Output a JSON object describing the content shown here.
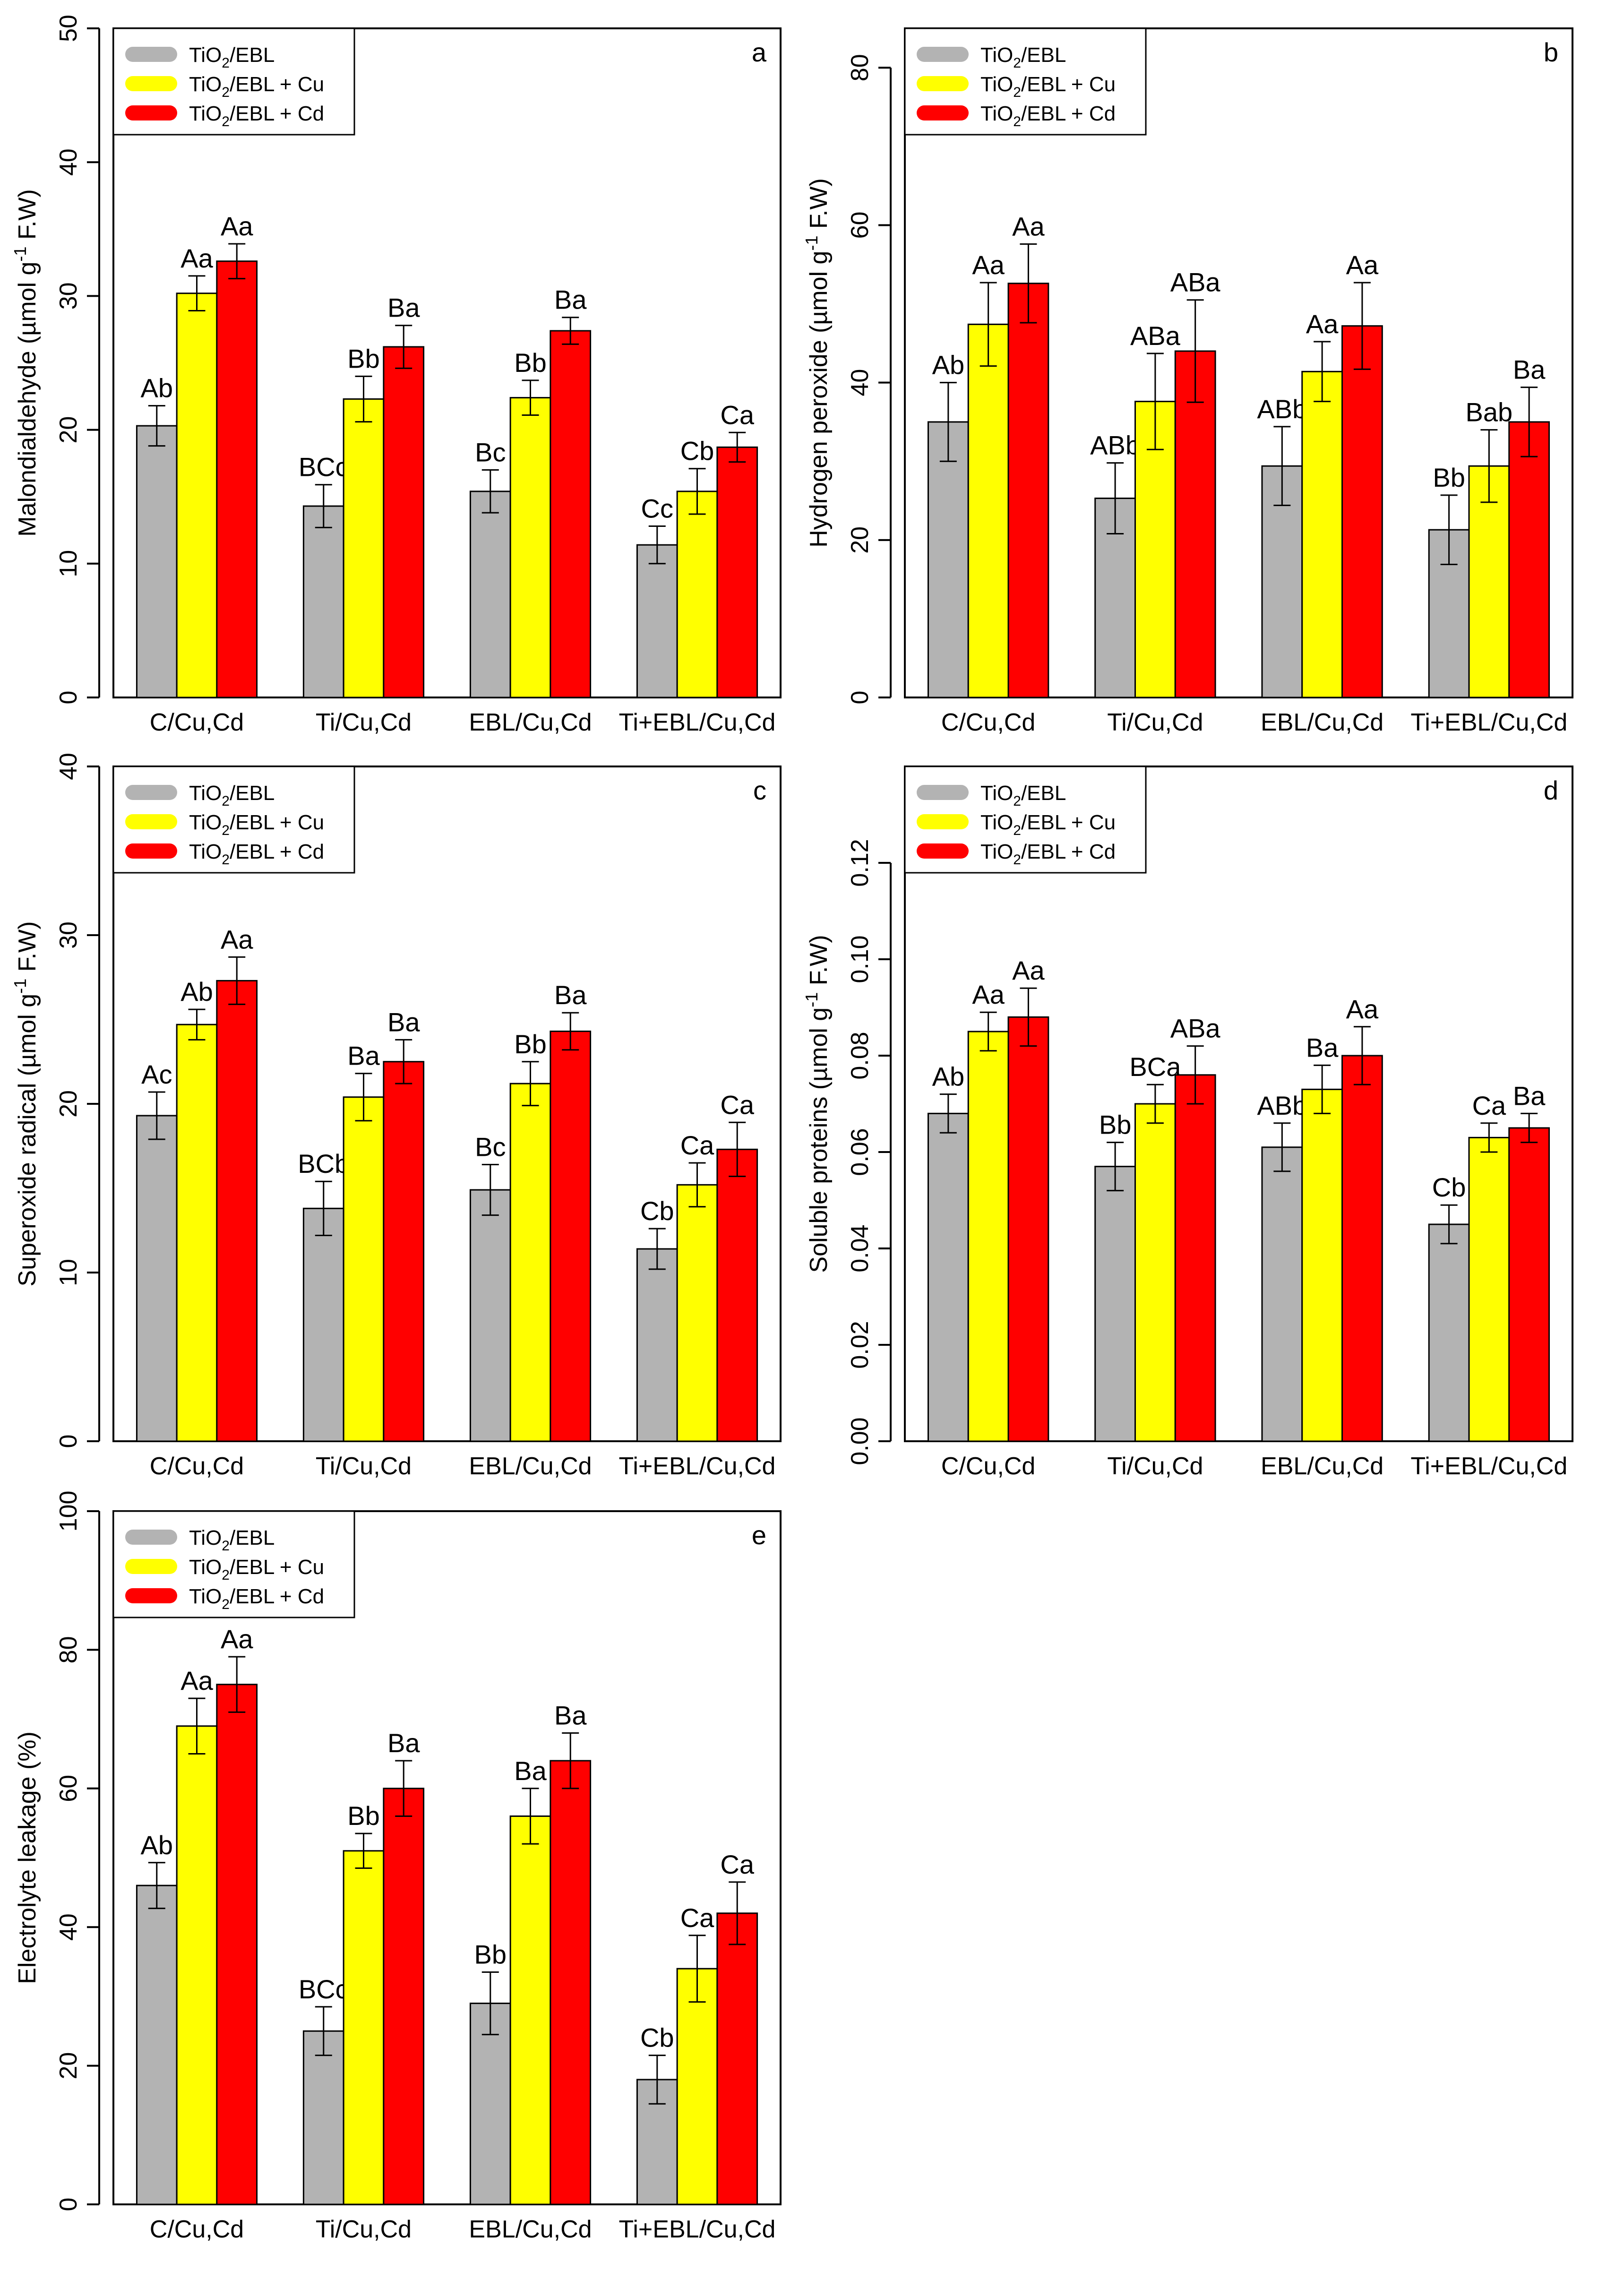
{
  "legend_labels": [
    {
      "base": "TiO",
      "sub": "2",
      "rest": "/EBL"
    },
    {
      "base": "TiO",
      "sub": "2",
      "rest": "/EBL + Cu"
    },
    {
      "base": "TiO",
      "sub": "2",
      "rest": "/EBL + Cd"
    }
  ],
  "colors": {
    "series": [
      "#b3b3b3",
      "#ffff00",
      "#ff0000"
    ],
    "axis": "#000000"
  },
  "chart_data": [
    {
      "panel": "a",
      "type": "bar",
      "ylabel": {
        "pre": "Malondialdehyde (µmol g",
        "sup": "-1",
        "post": " F.W)"
      },
      "categories": [
        "C/Cu,Cd",
        "Ti/Cu,Cd",
        "EBL/Cu,Cd",
        "Ti+EBL/Cu,Cd"
      ],
      "ylim": [
        0,
        50
      ],
      "ticks": [
        0,
        10,
        20,
        30,
        40,
        50
      ],
      "tick_labels": [
        "0",
        "10",
        "20",
        "30",
        "40",
        "50"
      ],
      "series": [
        {
          "name": "TiO2/EBL",
          "values": [
            20.3,
            14.3,
            15.4,
            11.4
          ],
          "errors": [
            1.5,
            1.6,
            1.6,
            1.4
          ],
          "letters": [
            "Ab",
            "BCc",
            "Bc",
            "Cc"
          ]
        },
        {
          "name": "TiO2/EBL + Cu",
          "values": [
            30.2,
            22.3,
            22.4,
            15.4
          ],
          "errors": [
            1.3,
            1.7,
            1.3,
            1.7
          ],
          "letters": [
            "Aa",
            "Bb",
            "Bb",
            "Cb"
          ]
        },
        {
          "name": "TiO2/EBL + Cd",
          "values": [
            32.6,
            26.2,
            27.4,
            18.7
          ],
          "errors": [
            1.3,
            1.6,
            1.0,
            1.1
          ],
          "letters": [
            "Aa",
            "Ba",
            "Ba",
            "Ca"
          ]
        }
      ]
    },
    {
      "panel": "b",
      "type": "bar",
      "ylabel": {
        "pre": "Hydrogen peroxide (µmol g",
        "sup": "-1",
        "post": " F.W)"
      },
      "categories": [
        "C/Cu,Cd",
        "Ti/Cu,Cd",
        "EBL/Cu,Cd",
        "Ti+EBL/Cu,Cd"
      ],
      "ylim": [
        0,
        85
      ],
      "ticks": [
        0,
        20,
        40,
        60,
        80
      ],
      "tick_labels": [
        "0",
        "20",
        "40",
        "60",
        "80"
      ],
      "series": [
        {
          "name": "TiO2/EBL",
          "values": [
            35.0,
            25.3,
            29.4,
            21.3
          ],
          "errors": [
            5.0,
            4.5,
            5.0,
            4.4
          ],
          "letters": [
            "Ab",
            "ABb",
            "ABb",
            "Bb"
          ]
        },
        {
          "name": "TiO2/EBL + Cu",
          "values": [
            47.4,
            37.6,
            41.4,
            29.4
          ],
          "errors": [
            5.3,
            6.1,
            3.8,
            4.6
          ],
          "letters": [
            "Aa",
            "ABa",
            "Aa",
            "Bab"
          ]
        },
        {
          "name": "TiO2/EBL + Cd",
          "values": [
            52.6,
            44.0,
            47.2,
            35.0
          ],
          "errors": [
            5.0,
            6.5,
            5.5,
            4.4
          ],
          "letters": [
            "Aa",
            "ABa",
            "Aa",
            "Ba"
          ]
        }
      ]
    },
    {
      "panel": "c",
      "type": "bar",
      "ylabel": {
        "pre": "Superoxide radical (µmol g",
        "sup": "-1",
        "post": " F.W)"
      },
      "categories": [
        "C/Cu,Cd",
        "Ti/Cu,Cd",
        "EBL/Cu,Cd",
        "Ti+EBL/Cu,Cd"
      ],
      "ylim": [
        0,
        40
      ],
      "ticks": [
        0,
        10,
        20,
        30,
        40
      ],
      "tick_labels": [
        "0",
        "10",
        "20",
        "30",
        "40"
      ],
      "series": [
        {
          "name": "TiO2/EBL",
          "values": [
            19.3,
            13.8,
            14.9,
            11.4
          ],
          "errors": [
            1.4,
            1.6,
            1.5,
            1.2
          ],
          "letters": [
            "Ac",
            "BCb",
            "Bc",
            "Cb"
          ]
        },
        {
          "name": "TiO2/EBL + Cu",
          "values": [
            24.7,
            20.4,
            21.2,
            15.2
          ],
          "errors": [
            0.9,
            1.4,
            1.3,
            1.3
          ],
          "letters": [
            "Ab",
            "Ba",
            "Bb",
            "Ca"
          ]
        },
        {
          "name": "TiO2/EBL + Cd",
          "values": [
            27.3,
            22.5,
            24.3,
            17.3
          ],
          "errors": [
            1.4,
            1.3,
            1.1,
            1.6
          ],
          "letters": [
            "Aa",
            "Ba",
            "Ba",
            "Ca"
          ]
        }
      ]
    },
    {
      "panel": "d",
      "type": "bar",
      "ylabel": {
        "pre": "Soluble proteins (µmol g",
        "sup": "-1",
        "post": " F.W)"
      },
      "categories": [
        "C/Cu,Cd",
        "Ti/Cu,Cd",
        "EBL/Cu,Cd",
        "Ti+EBL/Cu,Cd"
      ],
      "ylim": [
        0,
        0.14
      ],
      "ticks": [
        0,
        0.02,
        0.04,
        0.06,
        0.08,
        0.1,
        0.12
      ],
      "tick_labels": [
        "0.00",
        "0.02",
        "0.04",
        "0.06",
        "0.08",
        "0.10",
        "0.12"
      ],
      "series": [
        {
          "name": "TiO2/EBL",
          "values": [
            0.068,
            0.057,
            0.061,
            0.045
          ],
          "errors": [
            0.004,
            0.005,
            0.005,
            0.004
          ],
          "letters": [
            "Ab",
            "Bb",
            "ABb",
            "Cb"
          ]
        },
        {
          "name": "TiO2/EBL + Cu",
          "values": [
            0.085,
            0.07,
            0.073,
            0.063
          ],
          "errors": [
            0.004,
            0.004,
            0.005,
            0.003
          ],
          "letters": [
            "Aa",
            "BCa",
            "Ba",
            "Ca"
          ]
        },
        {
          "name": "TiO2/EBL + Cd",
          "values": [
            0.088,
            0.076,
            0.08,
            0.065
          ],
          "errors": [
            0.006,
            0.006,
            0.006,
            0.003
          ],
          "letters": [
            "Aa",
            "ABa",
            "Aa",
            "Ba"
          ]
        }
      ]
    },
    {
      "panel": "e",
      "type": "bar",
      "ylabel": {
        "pre": "Electrolyte leakage (%)",
        "sup": "",
        "post": ""
      },
      "categories": [
        "C/Cu,Cd",
        "Ti/Cu,Cd",
        "EBL/Cu,Cd",
        "Ti+EBL/Cu,Cd"
      ],
      "ylim": [
        0,
        100
      ],
      "ticks": [
        0,
        20,
        40,
        60,
        80,
        100
      ],
      "tick_labels": [
        "0",
        "20",
        "40",
        "60",
        "80",
        "100"
      ],
      "series": [
        {
          "name": "TiO2/EBL",
          "values": [
            46,
            25,
            29,
            18
          ],
          "errors": [
            3.3,
            3.5,
            4.5,
            3.5
          ],
          "letters": [
            "Ab",
            "BCc",
            "Bb",
            "Cb"
          ]
        },
        {
          "name": "TiO2/EBL + Cu",
          "values": [
            69,
            51,
            56,
            34
          ],
          "errors": [
            4.0,
            2.5,
            4.0,
            4.8
          ],
          "letters": [
            "Aa",
            "Bb",
            "Ba",
            "Ca"
          ]
        },
        {
          "name": "TiO2/EBL + Cd",
          "values": [
            75,
            60,
            64,
            42
          ],
          "errors": [
            4.0,
            4.0,
            4.0,
            4.5
          ],
          "letters": [
            "Aa",
            "Ba",
            "Ba",
            "Ca"
          ]
        }
      ]
    }
  ]
}
